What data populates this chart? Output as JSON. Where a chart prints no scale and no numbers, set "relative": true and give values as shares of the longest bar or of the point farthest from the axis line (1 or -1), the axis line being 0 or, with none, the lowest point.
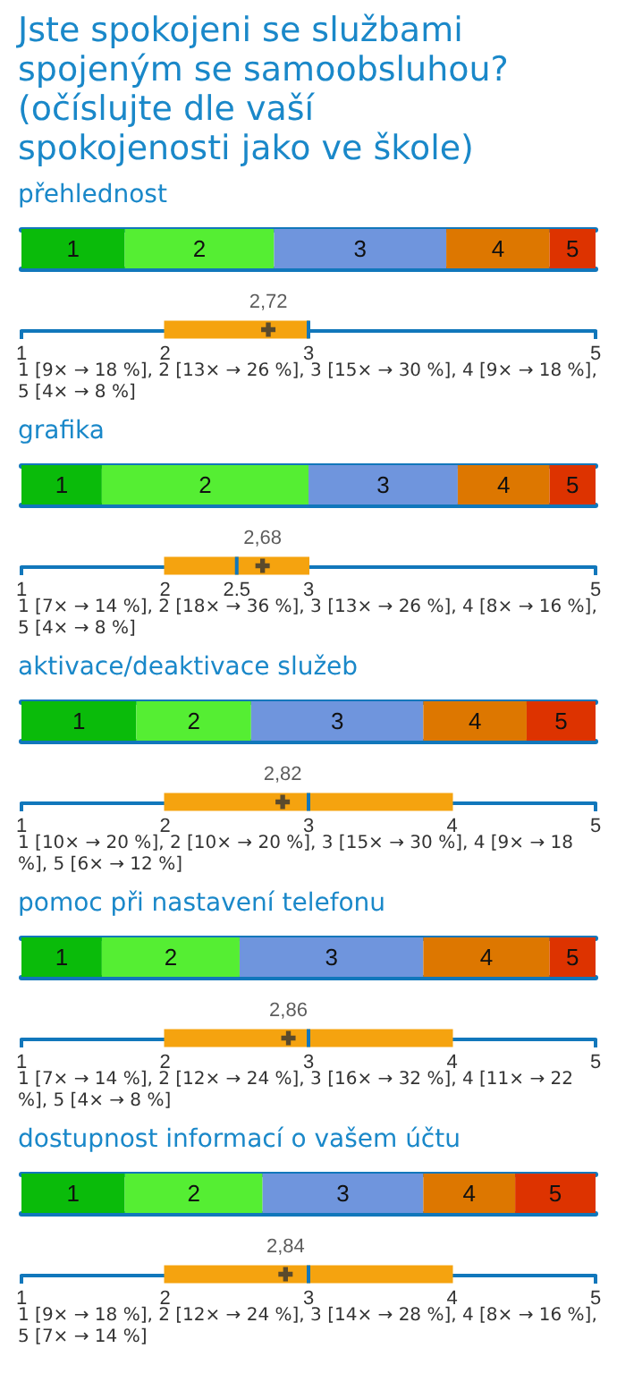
{
  "chart_data": [
    {
      "type": "bar",
      "title": "Jste spokojeni se službami spojeným se samoobsluhou?(očíslujte dle vaší spokojenosti jako ve škole)",
      "subtitle": "přehlednost",
      "orientation": "horizontal",
      "stacked": true,
      "relative": true,
      "categories": [
        null
      ],
      "series": [
        {
          "name": "1",
          "color": "#0abb0a",
          "values": [
            0.18
          ]
        },
        {
          "name": "2",
          "color": "#55ee33",
          "values": [
            0.26
          ]
        },
        {
          "name": "3",
          "color": "#6f95dd",
          "values": [
            0.3
          ]
        },
        {
          "name": "4",
          "color": "#dd7700",
          "values": [
            0.18
          ]
        },
        {
          "name": "5",
          "color": "#dd3300",
          "values": [
            0.08
          ]
        }
      ]
    },
    {
      "type": "box",
      "orientation": "horizontal",
      "categories": [
        null
      ],
      "tick_labels": "x",
      "color": "#f5a30f",
      "marker": "cross",
      "xlim": [
        1,
        5
      ],
      "xticks": [
        1,
        2,
        3,
        5
      ],
      "boxes": [
        {
          "low": 2,
          "q1": 2,
          "median": 3,
          "q3": 3,
          "high": 3,
          "mean": 2.72
        }
      ],
      "annotations": [
        "2,72",
        "1 [9× → 18 %], 2 [13× → 26 %], 3 [15× → 30 %], 4 [9× → 18 %], 5 [4× → 8 %]"
      ]
    },
    {
      "type": "bar",
      "title": "grafika",
      "orientation": "horizontal",
      "stacked": true,
      "relative": true,
      "categories": [
        null
      ],
      "series": [
        {
          "name": "1",
          "color": "#0abb0a",
          "values": [
            0.14
          ]
        },
        {
          "name": "2",
          "color": "#55ee33",
          "values": [
            0.36
          ]
        },
        {
          "name": "3",
          "color": "#6f95dd",
          "values": [
            0.26
          ]
        },
        {
          "name": "4",
          "color": "#dd7700",
          "values": [
            0.16
          ]
        },
        {
          "name": "5",
          "color": "#dd3300",
          "values": [
            0.08
          ]
        }
      ]
    },
    {
      "type": "box",
      "orientation": "horizontal",
      "categories": [
        null
      ],
      "tick_labels": "x",
      "color": "#f5a30f",
      "marker": "cross",
      "xlim": [
        1,
        5
      ],
      "xticks": [
        1,
        2,
        2.5,
        3,
        5
      ],
      "boxes": [
        {
          "low": 2,
          "q1": 2,
          "median": 2.5,
          "q3": 3,
          "high": 3,
          "mean": 2.68
        }
      ],
      "annotations": [
        "2,68",
        "1 [7× → 14 %], 2 [18× → 36 %], 3 [13× → 26 %], 4 [8× → 16 %], 5 [4× → 8 %]"
      ]
    },
    {
      "type": "bar",
      "title": "aktivace/deaktivace služeb",
      "orientation": "horizontal",
      "stacked": true,
      "relative": true,
      "categories": [
        null
      ],
      "series": [
        {
          "name": "1",
          "color": "#0abb0a",
          "values": [
            0.2
          ]
        },
        {
          "name": "2",
          "color": "#55ee33",
          "values": [
            0.2
          ]
        },
        {
          "name": "3",
          "color": "#6f95dd",
          "values": [
            0.3
          ]
        },
        {
          "name": "4",
          "color": "#dd7700",
          "values": [
            0.18
          ]
        },
        {
          "name": "5",
          "color": "#dd3300",
          "values": [
            0.12
          ]
        }
      ]
    },
    {
      "type": "box",
      "orientation": "horizontal",
      "categories": [
        null
      ],
      "tick_labels": "x",
      "color": "#f5a30f",
      "marker": "cross",
      "xlim": [
        1,
        5
      ],
      "xticks": [
        1,
        2,
        3,
        4,
        5
      ],
      "boxes": [
        {
          "low": 2,
          "q1": 2,
          "median": 3,
          "q3": 4,
          "high": 4,
          "mean": 2.82
        }
      ],
      "annotations": [
        "2,82",
        "1 [10× → 20 %], 2 [10× → 20 %], 3 [15× → 30 %], 4 [9× → 18 %], 5 [6× → 12 %]"
      ]
    },
    {
      "type": "bar",
      "title": "pomoc při nastavení telefonu",
      "orientation": "horizontal",
      "stacked": true,
      "relative": true,
      "categories": [
        null
      ],
      "series": [
        {
          "name": "1",
          "color": "#0abb0a",
          "values": [
            0.14
          ]
        },
        {
          "name": "2",
          "color": "#55ee33",
          "values": [
            0.24
          ]
        },
        {
          "name": "3",
          "color": "#6f95dd",
          "values": [
            0.32
          ]
        },
        {
          "name": "4",
          "color": "#dd7700",
          "values": [
            0.22
          ]
        },
        {
          "name": "5",
          "color": "#dd3300",
          "values": [
            0.08
          ]
        }
      ]
    },
    {
      "type": "box",
      "orientation": "horizontal",
      "categories": [
        null
      ],
      "tick_labels": "x",
      "color": "#f5a30f",
      "marker": "cross",
      "xlim": [
        1,
        5
      ],
      "xticks": [
        1,
        2,
        3,
        4,
        5
      ],
      "boxes": [
        {
          "low": 2,
          "q1": 2,
          "median": 3,
          "q3": 4,
          "high": 4,
          "mean": 2.86
        }
      ],
      "annotations": [
        "2,86",
        "1 [7× → 14 %], 2 [12× → 24 %], 3 [16× → 32 %], 4 [11× → 22 %], 5 [4× → 8 %]"
      ]
    },
    {
      "type": "bar",
      "title": "dostupnost informací o vašem účtu",
      "orientation": "horizontal",
      "stacked": true,
      "relative": true,
      "categories": [
        null
      ],
      "series": [
        {
          "name": "1",
          "color": "#0abb0a",
          "values": [
            0.18
          ]
        },
        {
          "name": "2",
          "color": "#55ee33",
          "values": [
            0.24
          ]
        },
        {
          "name": "3",
          "color": "#6f95dd",
          "values": [
            0.28
          ]
        },
        {
          "name": "4",
          "color": "#dd7700",
          "values": [
            0.16
          ]
        },
        {
          "name": "5",
          "color": "#dd3300",
          "values": [
            0.14
          ]
        }
      ]
    },
    {
      "type": "box",
      "orientation": "horizontal",
      "categories": [
        null
      ],
      "tick_labels": "x",
      "color": "#f5a30f",
      "marker": "cross",
      "xlim": [
        1,
        5
      ],
      "xticks": [
        1,
        2,
        3,
        4,
        5
      ],
      "boxes": [
        {
          "low": 2,
          "q1": 2,
          "median": 3,
          "q3": 4,
          "high": 4,
          "mean": 2.84
        }
      ],
      "annotations": [
        "2,84",
        "1 [9× → 18 %], 2 [12× → 24 %], 3 [14× → 28 %], 4 [8× → 16 %], 5 [7× → 14 %]"
      ]
    }
  ]
}
